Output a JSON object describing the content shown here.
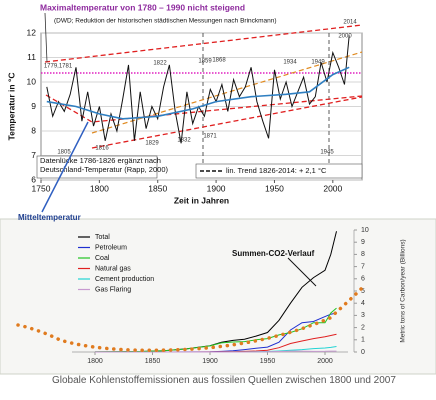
{
  "chart_data": [
    {
      "type": "line",
      "title": "Maximaltemperatur von 1780 – 1990 nicht steigend",
      "subtitle": "(DWD; Reduktion der historischen städtischen Messungen nach Brinckmann)",
      "x_label": "Zeit in Jahren",
      "y_label": "Temperatur in °C",
      "xlim": [
        1750,
        2025
      ],
      "xticks": [
        1750,
        1800,
        1850,
        1900,
        1950,
        2000
      ],
      "ylim": [
        6,
        12
      ],
      "yticks": [
        6,
        7,
        8,
        9,
        10,
        11,
        12
      ],
      "grid": true,
      "series": [
        {
          "color": "#111111",
          "x": [
            1755,
            1760,
            1765,
            1770,
            1775,
            1780,
            1785,
            1790,
            1795,
            1800,
            1805,
            1810,
            1815,
            1820,
            1825,
            1830,
            1835,
            1840,
            1845,
            1850,
            1855,
            1860,
            1865,
            1870,
            1875,
            1880,
            1885,
            1890,
            1895,
            1900,
            1905,
            1910,
            1915,
            1920,
            1925,
            1930,
            1935,
            1940,
            1945,
            1950,
            1955,
            1960,
            1965,
            1970,
            1975,
            1980,
            1985,
            1990,
            1995,
            2000,
            2005,
            2010,
            2014
          ],
          "values": [
            9.8,
            8.6,
            9.2,
            8.8,
            9.5,
            10.6,
            8.4,
            9.6,
            8.2,
            9.0,
            7.6,
            8.7,
            8.0,
            9.3,
            10.7,
            7.6,
            9.6,
            8.1,
            9.0,
            8.5,
            9.8,
            10.7,
            8.8,
            7.5,
            9.6,
            8.3,
            9.0,
            8.6,
            9.7,
            9.2,
            9.9,
            8.8,
            10.1,
            9.4,
            9.8,
            10.6,
            9.2,
            8.4,
            7.7,
            10.5,
            9.3,
            10.0,
            9.0,
            9.6,
            10.2,
            9.1,
            9.4,
            10.8,
            10.0,
            11.2,
            10.6,
            9.9,
            11.9
          ]
        },
        {
          "color": "#2f7fc1",
          "x": [
            1755,
            1780,
            1800,
            1820,
            1850,
            1880,
            1900,
            1930,
            1960,
            1980,
            2000,
            2014
          ],
          "values": [
            9.2,
            9.0,
            8.7,
            8.5,
            8.6,
            8.9,
            9.2,
            9.4,
            9.5,
            9.6,
            10.3,
            10.6
          ]
        }
      ],
      "annotations": [
        "1779,1781",
        "1822",
        "1859",
        "1868",
        "1934",
        "1949",
        "2014",
        "2000",
        "1805",
        "1816",
        "1829",
        "1832",
        "1871",
        "1945"
      ],
      "note_box": "Datenlücke 1786-1826 ergänzt nach Deutschland-Temperatur (Rapp, 2000)",
      "trend_legend": "lin. Trend 1826-2014: + 2,1 °C",
      "mean_label": "Mitteltemperatur"
    },
    {
      "type": "line",
      "y_label": "Metric tons of Carbon/year (Billions)",
      "annotation": "Summen-CO2-Verlauf",
      "caption": "Globale Kohlenstoffemissionen aus fossilen Quellen zwischen 1800 und 2007",
      "xlim": [
        1780,
        2020
      ],
      "xticks": [
        1800,
        1850,
        1900,
        1950,
        2000
      ],
      "ylim": [
        0,
        10
      ],
      "yticks": [
        0,
        1,
        2,
        3,
        4,
        5,
        6,
        7,
        8,
        9,
        10
      ],
      "x": [
        1800,
        1820,
        1840,
        1860,
        1880,
        1900,
        1910,
        1920,
        1930,
        1940,
        1950,
        1960,
        1970,
        1980,
        1990,
        2000,
        2005,
        2010
      ],
      "series": [
        {
          "name": "Total",
          "color": "#000000",
          "values": [
            0.01,
            0.02,
            0.04,
            0.1,
            0.26,
            0.52,
            0.8,
            0.95,
            1.05,
            1.3,
            1.6,
            2.6,
            4.0,
            5.3,
            6.1,
            6.7,
            8.0,
            9.9
          ]
        },
        {
          "name": "Petroleum",
          "color": "#1f2fd0",
          "values": [
            0,
            0,
            0,
            0,
            0.01,
            0.02,
            0.05,
            0.1,
            0.2,
            0.3,
            0.4,
            0.8,
            1.8,
            2.4,
            2.5,
            2.9,
            3.1,
            3.2
          ]
        },
        {
          "name": "Coal",
          "color": "#22c422",
          "values": [
            0.01,
            0.02,
            0.04,
            0.1,
            0.25,
            0.5,
            0.75,
            0.82,
            0.85,
            1.0,
            1.1,
            1.4,
            1.6,
            1.9,
            2.4,
            2.4,
            3.2,
            3.6
          ]
        },
        {
          "name": "Natural gas",
          "color": "#e02020",
          "values": [
            0,
            0,
            0,
            0,
            0,
            0.01,
            0.02,
            0.03,
            0.05,
            0.08,
            0.15,
            0.35,
            0.7,
            0.9,
            1.1,
            1.25,
            1.35,
            1.45
          ]
        },
        {
          "name": "Cement production",
          "color": "#22d4d4",
          "values": [
            0,
            0,
            0,
            0,
            0,
            0,
            0,
            0.01,
            0.01,
            0.02,
            0.04,
            0.08,
            0.14,
            0.2,
            0.28,
            0.33,
            0.38,
            0.45
          ]
        },
        {
          "name": "Gas Flaring",
          "color": "#c79ad0",
          "values": [
            0,
            0,
            0,
            0,
            0,
            0,
            0,
            0,
            0,
            0.01,
            0.02,
            0.04,
            0.07,
            0.07,
            0.05,
            0.06,
            0.07,
            0.07
          ]
        }
      ]
    }
  ]
}
